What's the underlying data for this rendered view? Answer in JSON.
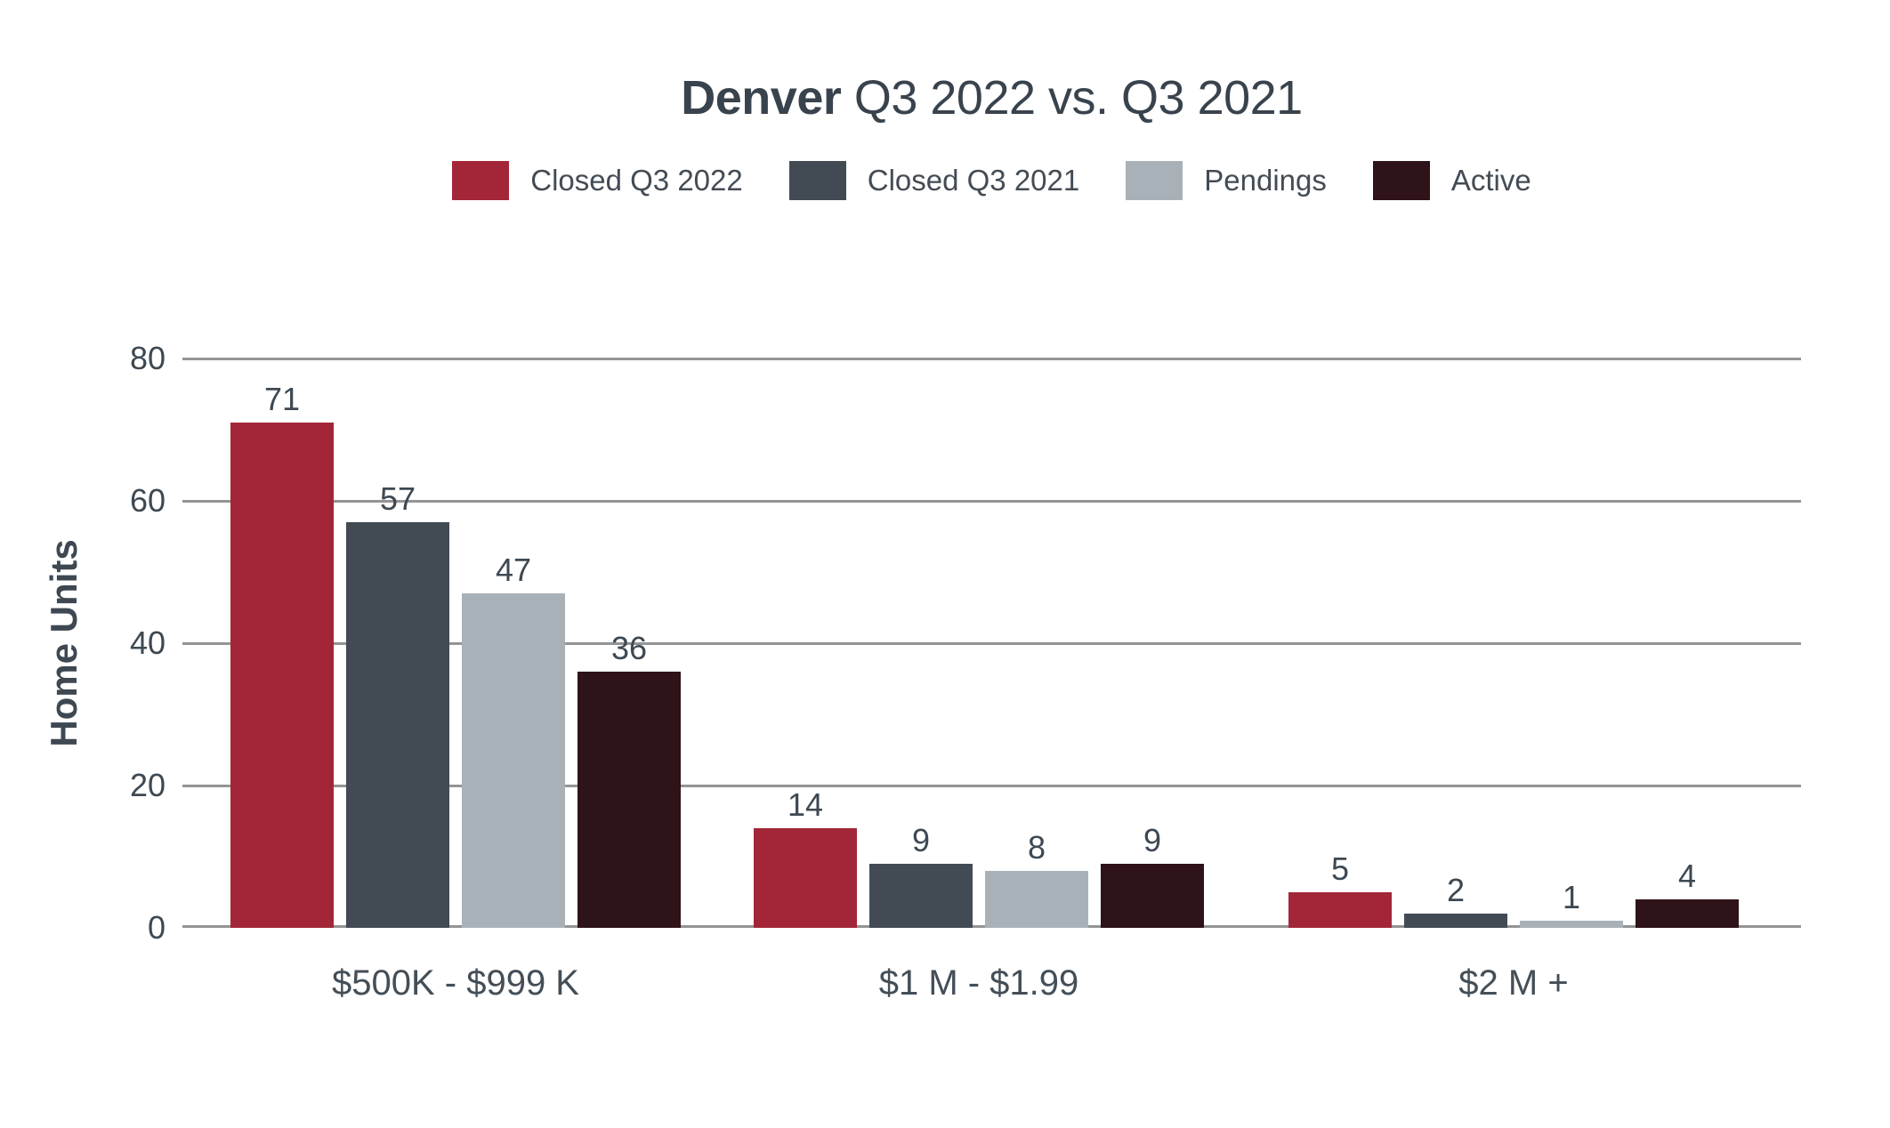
{
  "title": {
    "bold": "Denver",
    "rest": " Q3 2022 vs. Q3 2021"
  },
  "chart_data": {
    "type": "bar",
    "title": "Denver Q3 2022 vs. Q3 2021",
    "xlabel": "",
    "ylabel": "Home Units",
    "categories": [
      "$500K - $999 K",
      "$1 M - $1.99",
      "$2 M +"
    ],
    "series": [
      {
        "name": "Closed Q3 2022",
        "color": "#a32638",
        "values": [
          71,
          14,
          5
        ]
      },
      {
        "name": "Closed Q3 2021",
        "color": "#424b54",
        "values": [
          57,
          9,
          2
        ]
      },
      {
        "name": "Pendings",
        "color": "#a9b1b8",
        "values": [
          47,
          8,
          1
        ]
      },
      {
        "name": "Active",
        "color": "#2e1318",
        "values": [
          36,
          9,
          4
        ]
      }
    ],
    "ylim": [
      0,
      80
    ],
    "yticks": [
      0,
      20,
      40,
      60,
      80
    ],
    "grid": true,
    "legend_position": "top",
    "bar_value_labels": true
  },
  "colors": {
    "text": "#3d4852",
    "gridline": "#949494",
    "background": "#ffffff",
    "title_text": "#39434d"
  }
}
